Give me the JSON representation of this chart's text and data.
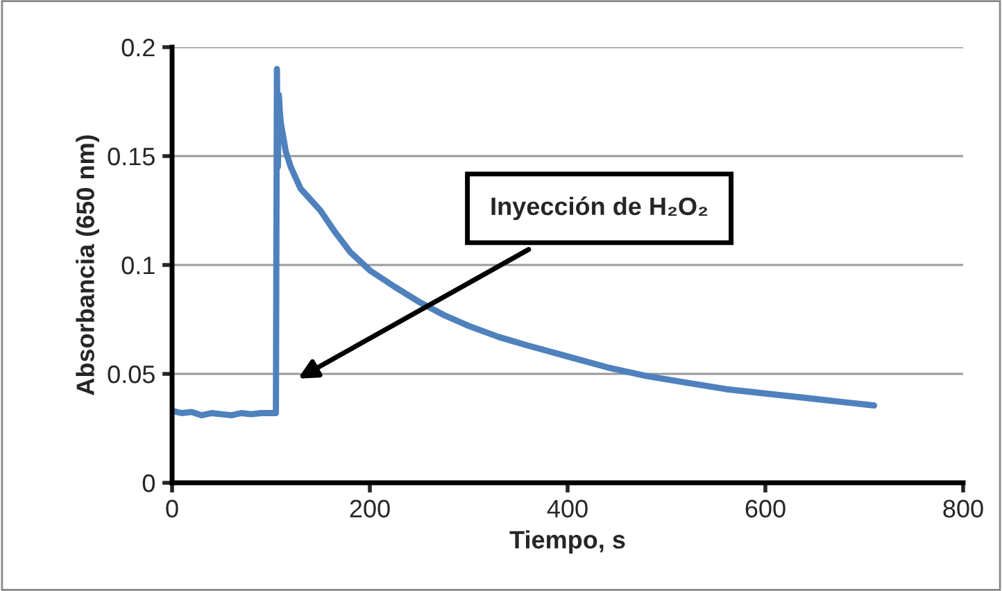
{
  "chart_data": {
    "type": "line",
    "xlabel": "Tiempo, s",
    "ylabel": "Absorbancia (650 nm)",
    "x": [
      0,
      10,
      20,
      30,
      40,
      50,
      60,
      70,
      80,
      90,
      100,
      105,
      106,
      107,
      108,
      109,
      110,
      112,
      115,
      120,
      130,
      140,
      150,
      165,
      180,
      200,
      225,
      250,
      275,
      300,
      330,
      360,
      400,
      440,
      480,
      520,
      560,
      600,
      640,
      680,
      710
    ],
    "series": [
      {
        "color": "#4f81bd",
        "values": [
          0.033,
          0.032,
          0.0325,
          0.031,
          0.032,
          0.0315,
          0.031,
          0.032,
          0.0315,
          0.032,
          0.032,
          0.032,
          0.19,
          0.145,
          0.178,
          0.17,
          0.165,
          0.16,
          0.152,
          0.145,
          0.135,
          0.13,
          0.125,
          0.115,
          0.106,
          0.0975,
          0.09,
          0.083,
          0.077,
          0.072,
          0.067,
          0.063,
          0.058,
          0.053,
          0.049,
          0.046,
          0.043,
          0.041,
          0.039,
          0.037,
          0.0355
        ]
      }
    ],
    "xlim": [
      0,
      800
    ],
    "xticks": [
      0,
      200,
      400,
      600,
      800
    ],
    "ylim": [
      0,
      0.2
    ],
    "yticks": [
      0,
      0.05,
      0.1,
      0.15,
      0.2
    ],
    "grid": "y",
    "marker": "none",
    "line_style": "solid",
    "annotations": [
      "Inyección de H₂O₂"
    ]
  }
}
